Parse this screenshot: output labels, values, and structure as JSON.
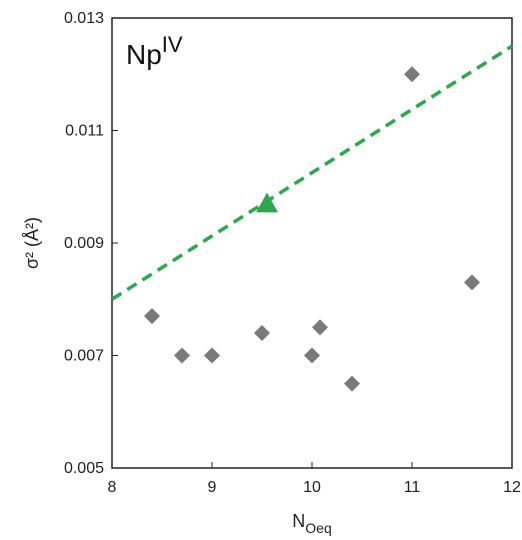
{
  "chart_data": {
    "type": "scatter",
    "annotation": {
      "main": "Np",
      "sup": "IV"
    },
    "xlabel": {
      "main": "N",
      "sub": "Oeq"
    },
    "ylabel": "σ² (Å²)",
    "xlim": [
      8,
      12
    ],
    "ylim": [
      0.005,
      0.013
    ],
    "x_ticks": [
      "8",
      "9",
      "10",
      "11",
      "12"
    ],
    "y_ticks": [
      "0.005",
      "0.007",
      "0.009",
      "0.011",
      "0.013"
    ],
    "grid": false,
    "legend": "none",
    "series": [
      {
        "marker": "diamond",
        "color": "#7a7a7a",
        "points": [
          {
            "x": 8.4,
            "y": 0.0077
          },
          {
            "x": 8.7,
            "y": 0.007
          },
          {
            "x": 9.0,
            "y": 0.007
          },
          {
            "x": 9.5,
            "y": 0.0074
          },
          {
            "x": 10.0,
            "y": 0.007
          },
          {
            "x": 10.08,
            "y": 0.0075
          },
          {
            "x": 10.4,
            "y": 0.0065
          },
          {
            "x": 11.0,
            "y": 0.012
          },
          {
            "x": 11.6,
            "y": 0.0083
          }
        ]
      },
      {
        "marker": "triangle",
        "color": "#2ea84e",
        "points": [
          {
            "x": 9.55,
            "y": 0.0097
          }
        ]
      }
    ],
    "trendline": {
      "style": "dashed",
      "color": "#2ea84e",
      "from": {
        "x": 8,
        "y": 0.008
      },
      "to": {
        "x": 12,
        "y": 0.0125
      }
    }
  }
}
